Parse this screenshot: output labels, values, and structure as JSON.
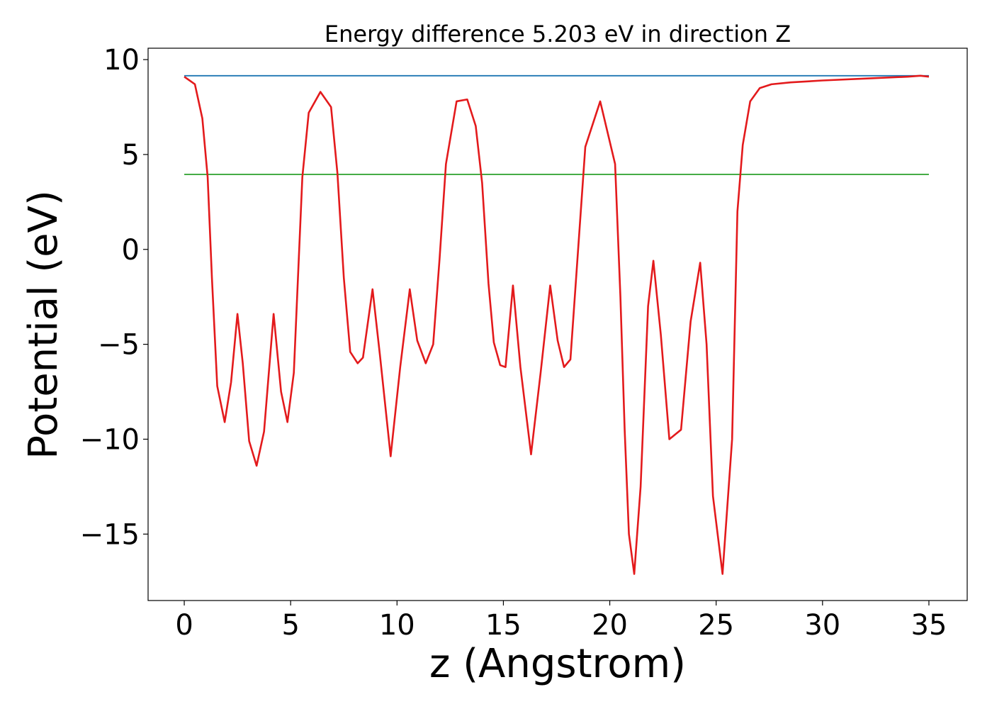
{
  "chart_data": {
    "type": "line",
    "title": "Energy difference 5.203 eV in direction Z",
    "xlabel": "z (Angstrom)",
    "ylabel": "Potential (eV)",
    "xlim": [
      -1.7,
      36.8
    ],
    "ylim": [
      -18.5,
      10.6
    ],
    "xticks": [
      0,
      5,
      10,
      15,
      20,
      25,
      30,
      35
    ],
    "yticks": [
      10,
      5,
      0,
      -5,
      -10,
      -15
    ],
    "grid": false,
    "legend": "none",
    "colors": {
      "potential": "#e31a1c",
      "vacuum_level": "#1f77b4",
      "fermi_level": "#2ca02c"
    },
    "series": [
      {
        "role": "vacuum_level",
        "x": [
          0,
          35.0
        ],
        "y": [
          9.15,
          9.15
        ]
      },
      {
        "role": "fermi_level",
        "x": [
          0,
          35.0
        ],
        "y": [
          3.95,
          3.95
        ]
      },
      {
        "role": "potential",
        "x": [
          0,
          0.5,
          0.85,
          1.1,
          1.3,
          1.55,
          1.9,
          2.2,
          2.5,
          2.75,
          3.05,
          3.4,
          3.75,
          4.2,
          4.55,
          4.85,
          5.15,
          5.55,
          5.85,
          6.4,
          6.9,
          7.2,
          7.5,
          7.8,
          8.15,
          8.4,
          8.85,
          9.2,
          9.7,
          10.15,
          10.6,
          10.95,
          11.35,
          11.7,
          12.0,
          12.3,
          12.8,
          13.3,
          13.7,
          14.0,
          14.3,
          14.55,
          14.85,
          15.1,
          15.45,
          15.8,
          16.3,
          16.75,
          17.2,
          17.55,
          17.85,
          18.15,
          18.5,
          18.85,
          19.55,
          20.25,
          20.5,
          20.7,
          20.9,
          21.15,
          21.45,
          21.8,
          22.05,
          22.4,
          22.8,
          23.35,
          23.8,
          24.25,
          24.55,
          24.85,
          25.3,
          25.75,
          26.0,
          26.25,
          26.6,
          27.05,
          27.6,
          28.5,
          30.0,
          32.0,
          34.0,
          34.6,
          35.0
        ],
        "y": [
          9.1,
          8.7,
          6.9,
          3.8,
          -1.5,
          -7.2,
          -9.1,
          -7.0,
          -3.4,
          -6.0,
          -10.1,
          -11.4,
          -9.6,
          -3.4,
          -7.5,
          -9.1,
          -6.5,
          3.8,
          7.2,
          8.3,
          7.5,
          4.0,
          -1.5,
          -5.4,
          -6.0,
          -5.7,
          -2.1,
          -5.6,
          -10.9,
          -6.2,
          -2.1,
          -4.8,
          -6.0,
          -5.0,
          -0.5,
          4.5,
          7.8,
          7.9,
          6.5,
          3.5,
          -1.8,
          -4.9,
          -6.1,
          -6.2,
          -1.9,
          -6.2,
          -10.8,
          -6.5,
          -1.9,
          -4.8,
          -6.2,
          -5.8,
          -0.2,
          5.4,
          7.8,
          4.5,
          -2.5,
          -9.5,
          -15.0,
          -17.1,
          -12.5,
          -3.0,
          -0.6,
          -4.5,
          -10.0,
          -9.5,
          -3.8,
          -0.7,
          -5.0,
          -13.0,
          -17.1,
          -10.0,
          2.0,
          5.5,
          7.8,
          8.5,
          8.7,
          8.8,
          8.9,
          9.0,
          9.1,
          9.15,
          9.1
        ]
      }
    ]
  }
}
